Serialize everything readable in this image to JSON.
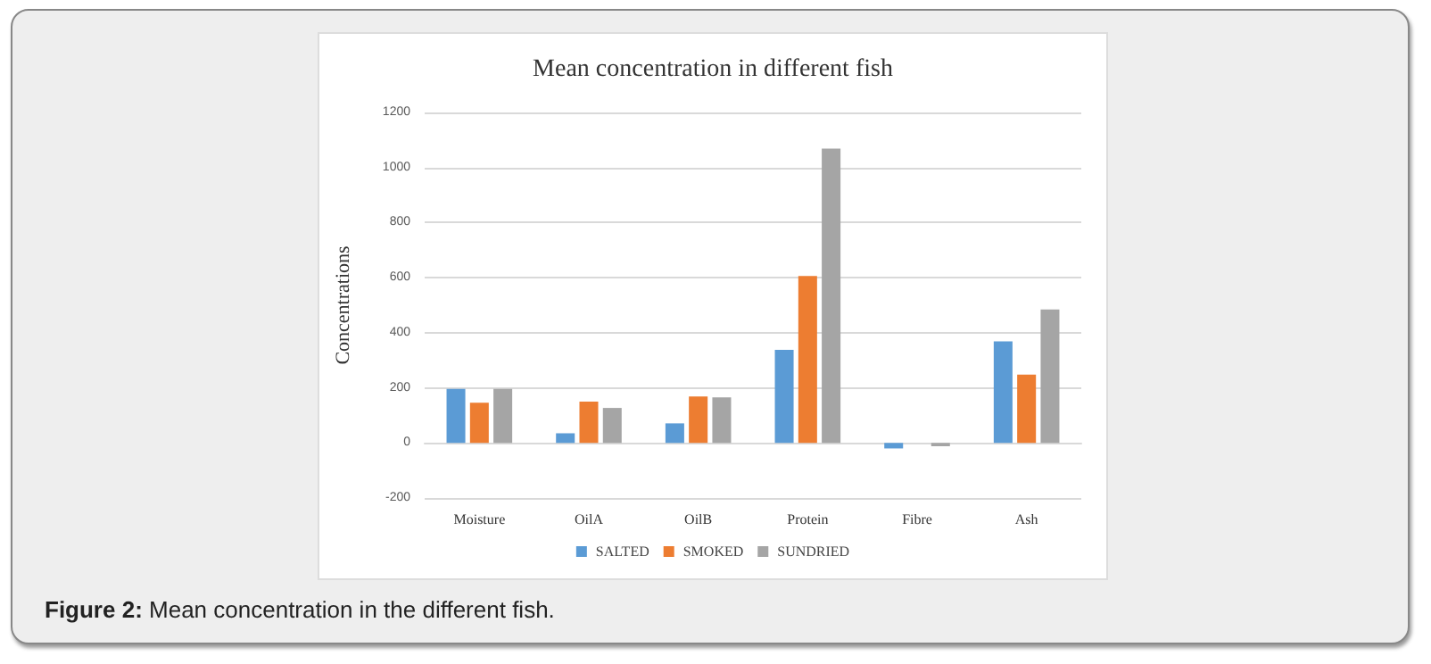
{
  "chart_data": {
    "type": "bar",
    "title": "Mean concentration in different fish",
    "ylabel": "Concentrations",
    "categories": [
      "Moisture",
      "OilA",
      "OilB",
      "Protein",
      "Fibre",
      "Ash"
    ],
    "series": [
      {
        "name": "SALTED",
        "color": "#5b9bd5",
        "values": [
          196,
          35,
          71,
          338,
          -20,
          369
        ]
      },
      {
        "name": "SMOKED",
        "color": "#ed7d31",
        "values": [
          146,
          150,
          169,
          606,
          null,
          248
        ]
      },
      {
        "name": "SUNDRIED",
        "color": "#a5a5a5",
        "values": [
          196,
          127,
          165,
          1069,
          -12,
          485
        ]
      }
    ],
    "ylim": [
      -200,
      1200
    ],
    "yticks": [
      -200,
      0,
      200,
      400,
      600,
      800,
      1000,
      1200
    ],
    "grid": "y",
    "legend": "bottom",
    "annotations": [
      "Figure 2: Mean concentration in the different fish."
    ]
  }
}
